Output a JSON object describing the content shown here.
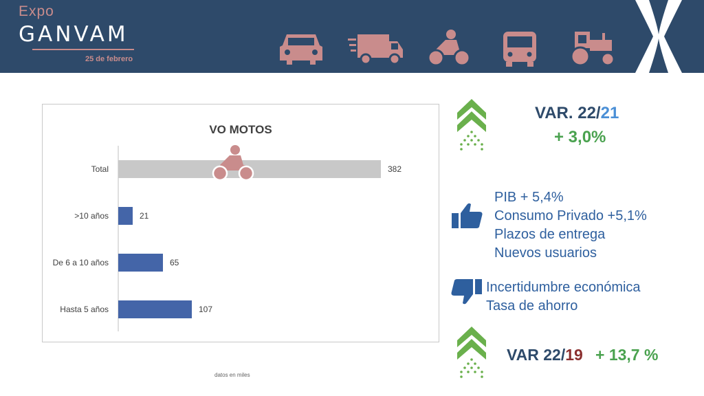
{
  "header": {
    "logo_expo": "Expo",
    "logo_ganvam": "GANVAM",
    "date": "25 de febrero",
    "vehicle_icons": [
      "car-icon",
      "truck-icon",
      "motorcycle-icon",
      "bus-icon",
      "tractor-icon"
    ]
  },
  "chart_data": {
    "type": "bar",
    "orientation": "horizontal",
    "title": "VO MOTOS",
    "categories": [
      "Total",
      ">10 años",
      "De 6 a 10 años",
      "Hasta 5 años"
    ],
    "values": [
      382,
      21,
      65,
      107
    ],
    "value_labels": [
      "382",
      "21",
      "65",
      "107"
    ],
    "xlim": [
      0,
      400
    ],
    "grid": false,
    "legend": "none",
    "colors": {
      "total": "#c8c8c8",
      "bars": "#4465a8"
    }
  },
  "footnote": "datos en miles",
  "var_22_21": {
    "label_prefix": "VAR. 22/",
    "label_suffix": "21",
    "value": "+ 3,0%"
  },
  "positives": [
    "PIB + 5,4%",
    "Consumo Privado +5,1%",
    "Plazos de entrega",
    "Nuevos usuarios"
  ],
  "negatives": [
    "Incertidumbre económica",
    "Tasa de ahorro"
  ],
  "var_22_19": {
    "label_prefix": "VAR 22/",
    "label_suffix": "19",
    "value": "+ 13,7 %"
  },
  "colors": {
    "header_bg": "#2e4a6a",
    "accent_pink": "#c98c8c",
    "green": "#4aa24f",
    "blue_text": "#2e5f9e"
  }
}
